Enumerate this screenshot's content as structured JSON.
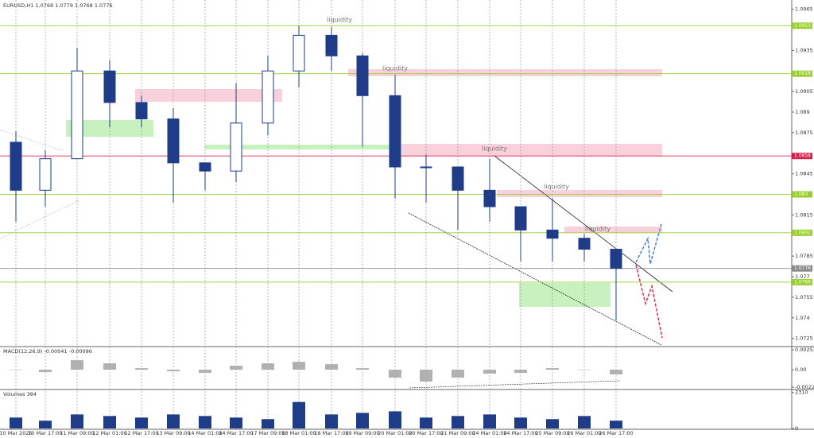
{
  "chart_data": [
    {
      "type": "candlestick",
      "title": "EURUSD,H1  1.0768 1.0779 1.0768 1.0776",
      "x": [
        "10 Mar 2025",
        "10 Mar 17:00",
        "11 Mar 09:00",
        "12 Mar 01:00",
        "12 Mar 17:00",
        "13 Mar 09:00",
        "14 Mar 01:00",
        "14 Mar 17:00",
        "17 Mar 09:00",
        "18 Mar 01:00",
        "18 Mar 17:00",
        "19 Mar 09:00",
        "20 Mar 01:00",
        "20 Mar 17:00",
        "21 Mar 09:00",
        "24 Mar 01:00",
        "24 Mar 17:00",
        "25 Mar 09:00",
        "26 Mar 01:00",
        "26 Mar 17:00"
      ],
      "open": [
        1.0868,
        1.0833,
        1.0856,
        1.092,
        1.0897,
        1.0885,
        1.0853,
        1.0847,
        1.0882,
        1.092,
        1.0946,
        1.0931,
        1.0902,
        1.085,
        1.085,
        1.0833,
        1.0821,
        1.0804,
        1.0798,
        1.079
      ],
      "high": [
        1.0876,
        1.0862,
        1.0937,
        1.0928,
        1.0902,
        1.0893,
        1.0853,
        1.0911,
        1.0931,
        1.0953,
        1.0952,
        1.0933,
        1.0917,
        1.0859,
        1.085,
        1.0856,
        1.0821,
        1.0827,
        1.0801,
        1.079
      ],
      "low": [
        1.081,
        1.0821,
        1.0856,
        1.0879,
        1.0879,
        1.0824,
        1.0833,
        1.0839,
        1.0873,
        1.0908,
        1.092,
        1.0865,
        1.0827,
        1.0824,
        1.0804,
        1.081,
        1.0781,
        1.0781,
        1.0781,
        1.0738
      ],
      "close": [
        1.0833,
        1.0856,
        1.092,
        1.0897,
        1.0885,
        1.0853,
        1.0847,
        1.0882,
        1.092,
        1.0946,
        1.0931,
        1.0902,
        1.085,
        1.085,
        1.0833,
        1.0821,
        1.0804,
        1.0798,
        1.079,
        1.0776
      ],
      "color": "#1f3c88",
      "ylim": [
        1.0719,
        1.097
      ],
      "yticks": [
        1.0965,
        1.0935,
        1.0905,
        1.089,
        1.0875,
        1.0845,
        1.0815,
        1.0785,
        1.077,
        1.0755,
        1.074,
        1.0725
      ],
      "levels": [
        {
          "value": 1.0953,
          "color": "#9acd32"
        },
        {
          "value": 1.0918,
          "color": "#9acd32"
        },
        {
          "value": 1.0858,
          "color": "#d6204a"
        },
        {
          "value": 1.083,
          "color": "#9acd32"
        },
        {
          "value": 1.0802,
          "color": "#9acd32"
        },
        {
          "value": 1.0776,
          "color": "#8a8a8a"
        },
        {
          "value": 1.0766,
          "color": "#9acd32"
        }
      ],
      "annotations": [
        "liquidity",
        "liquidity",
        "liquidity",
        "liquidity",
        "liquidity"
      ]
    },
    {
      "type": "bar",
      "title": "MACD(12,26,9) -0.00041 -0.00096",
      "values": [
        0,
        -0.0003,
        0.0012,
        0.0008,
        0.0002,
        -0.0002,
        -0.0004,
        0.0005,
        0.0008,
        0.001,
        0.0007,
        0.0002,
        -0.001,
        -0.0015,
        -0.001,
        -0.0005,
        -0.0004,
        0.0002,
        0,
        -0.0006
      ],
      "color": "#b0b0b0",
      "ylim": [
        -0.0024,
        0.00282
      ],
      "yticks": [
        0.00252,
        {
          "value": 0,
          "label": "0.00"
        },
        -0.0022
      ]
    },
    {
      "type": "bar",
      "title": "Volumes 384",
      "values": [
        700,
        500,
        900,
        800,
        700,
        900,
        800,
        700,
        600,
        1700,
        900,
        1000,
        1100,
        700,
        800,
        900,
        700,
        600,
        800,
        500
      ],
      "color": "#1f3c88",
      "ylim": [
        0,
        2450
      ],
      "yticks": [
        0,
        2310
      ]
    }
  ]
}
